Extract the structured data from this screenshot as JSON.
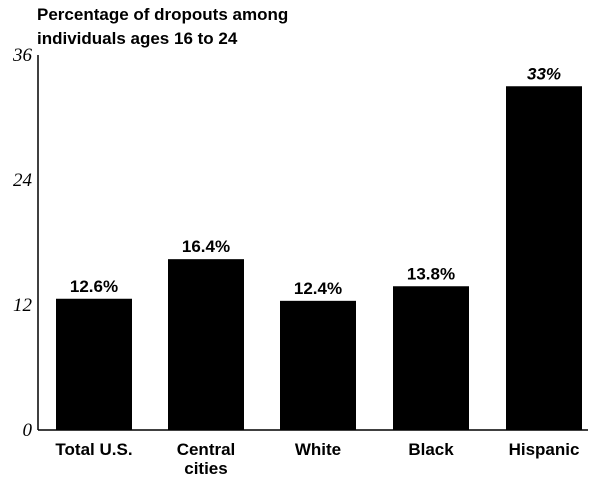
{
  "chart_data": {
    "type": "bar",
    "title_lines": [
      "Percentage of dropouts among",
      "individuals ages 16 to 24"
    ],
    "categories": [
      [
        "Total  U.S."
      ],
      [
        "Central",
        "cities"
      ],
      [
        "White"
      ],
      [
        "Black"
      ],
      [
        "Hispanic"
      ]
    ],
    "values": [
      12.6,
      16.4,
      12.4,
      13.8,
      33
    ],
    "data_labels": [
      "12.6%",
      "16.4%",
      "12.4%",
      "13.8%",
      "33%"
    ],
    "yticks": [
      0,
      12,
      24,
      36
    ],
    "ylim": [
      0,
      36
    ],
    "xlabel": "",
    "ylabel": "",
    "grid": false,
    "colors": {
      "bar": "#000000",
      "axis": "#000000",
      "text": "#000000"
    }
  }
}
